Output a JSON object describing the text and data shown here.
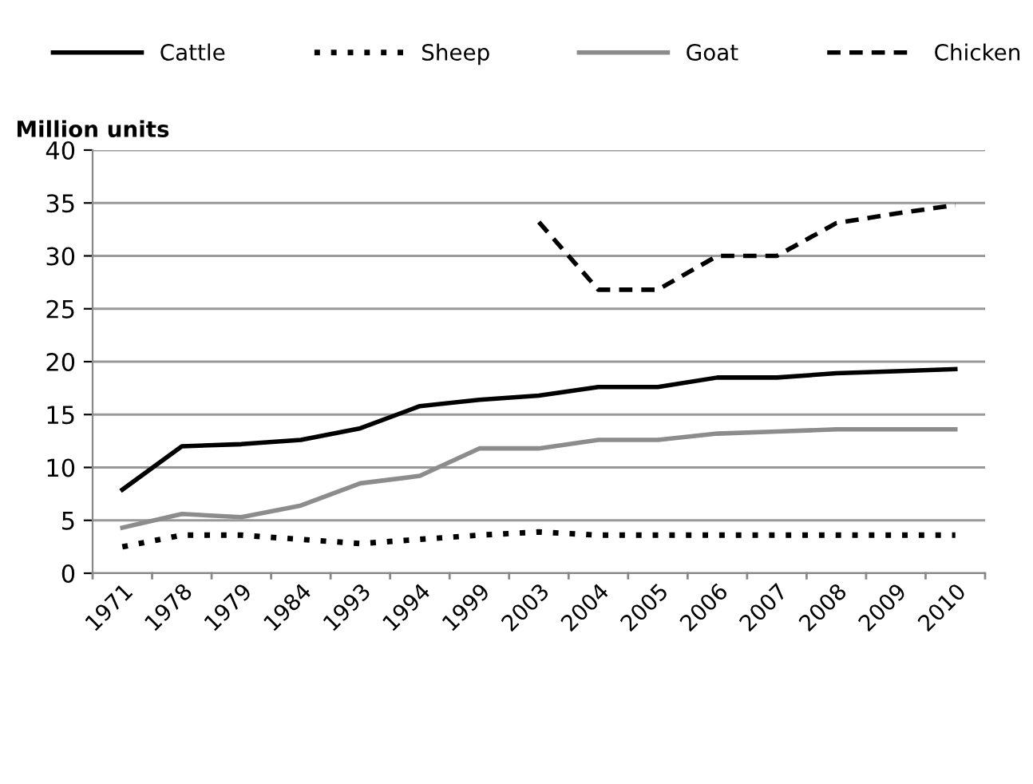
{
  "chart_data": {
    "type": "line",
    "ylabel": "Million units",
    "categories": [
      "1971",
      "1978",
      "1979",
      "1984",
      "1993",
      "1994",
      "1999",
      "2003",
      "2004",
      "2005",
      "2006",
      "2007",
      "2008",
      "2009",
      "2010"
    ],
    "series": [
      {
        "name": "Cattle",
        "color": "#000000",
        "line_style": "solid",
        "values": [
          7.9,
          12,
          12.2,
          12.6,
          13.7,
          15.8,
          16.4,
          16.8,
          17.6,
          17.6,
          18.5,
          18.5,
          18.9,
          19.1,
          19.3
        ]
      },
      {
        "name": "Sheep",
        "color": "#000000",
        "line_style": "dotted",
        "values": [
          2.5,
          3.6,
          3.6,
          3.2,
          2.8,
          3.2,
          3.6,
          3.9,
          3.6,
          3.6,
          3.6,
          3.6,
          3.6,
          3.6,
          3.6
        ]
      },
      {
        "name": "Goat",
        "color": "#8c8c8c",
        "line_style": "solid",
        "values": [
          4.3,
          5.6,
          5.3,
          6.4,
          8.5,
          9.2,
          11.8,
          11.8,
          12.6,
          12.6,
          13.2,
          13.4,
          13.6,
          13.6,
          13.6
        ]
      },
      {
        "name": "Chicken",
        "color": "#000000",
        "line_style": "dashed",
        "values": [
          null,
          null,
          null,
          null,
          null,
          null,
          null,
          33.2,
          26.8,
          26.8,
          30,
          30,
          33.1,
          34,
          34.8
        ]
      }
    ],
    "ylim": [
      0,
      40
    ],
    "yticks": [
      0,
      5,
      10,
      15,
      20,
      25,
      30,
      35,
      40
    ],
    "grid": "y",
    "legend": "top",
    "marker": "none"
  }
}
